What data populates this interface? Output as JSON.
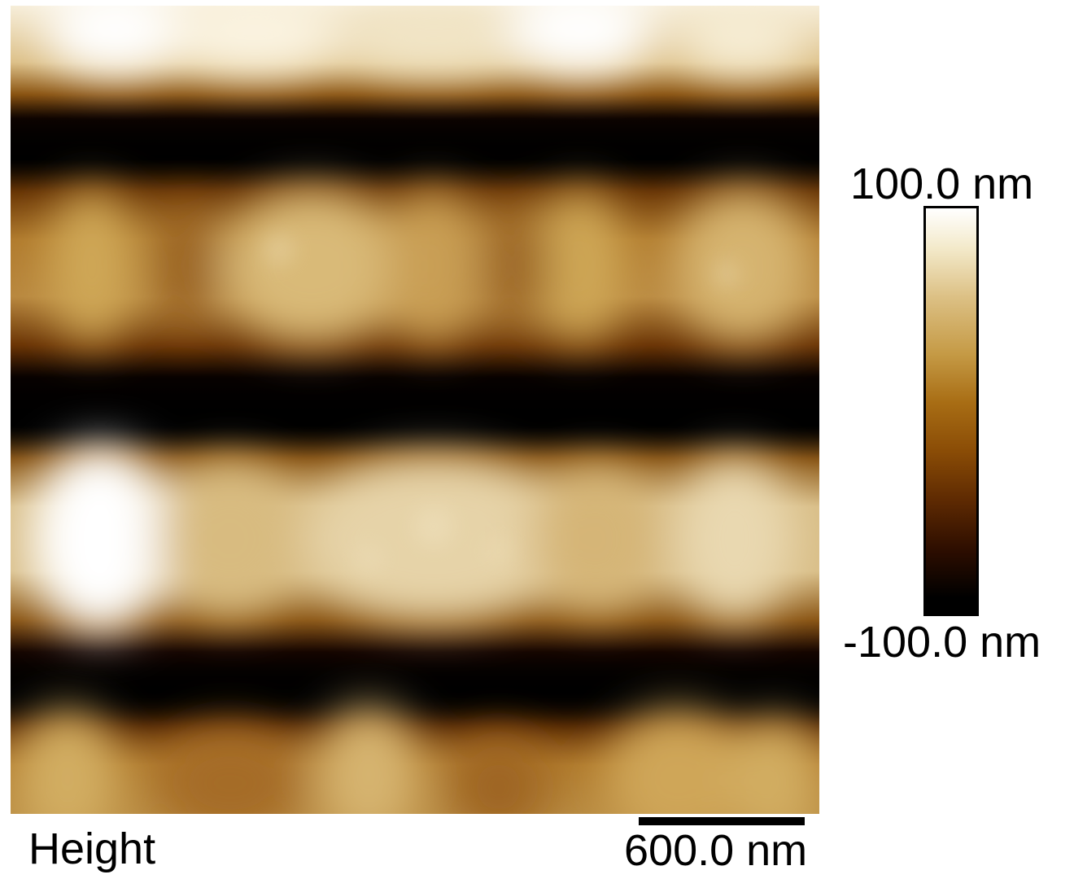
{
  "image": {
    "channel": "Height",
    "colormap": [
      "#000000",
      "#5e2a02",
      "#a86d14",
      "#dcc084",
      "#ffffff"
    ]
  },
  "colorbar": {
    "max_label": "100.0 nm",
    "min_label": "-100.0 nm"
  },
  "scale_bar": {
    "label": "600.0 nm"
  }
}
